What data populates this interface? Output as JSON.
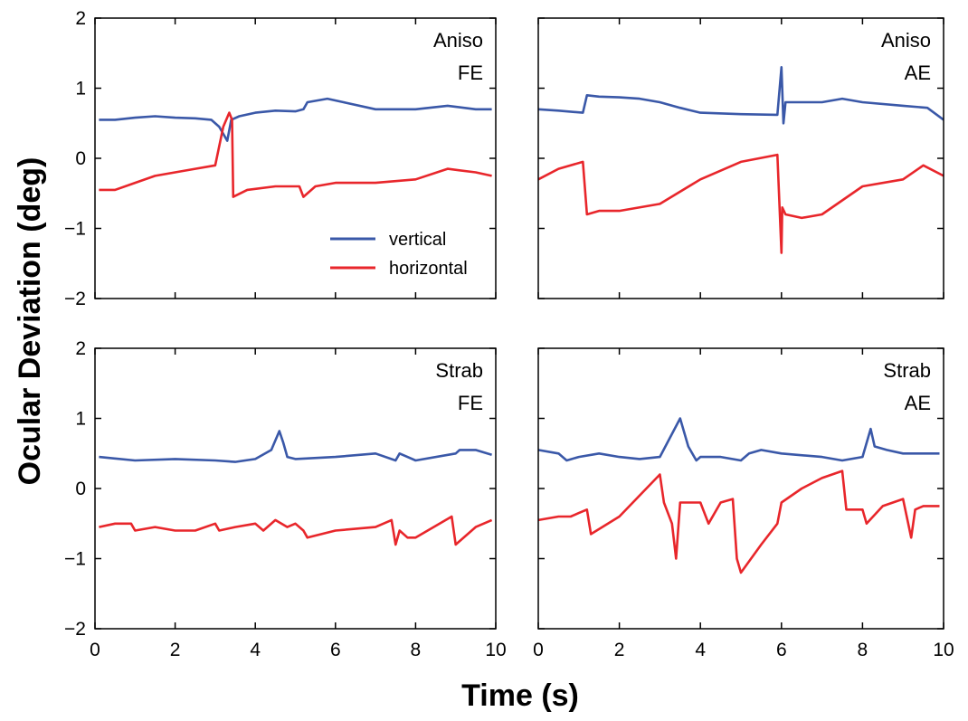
{
  "figure": {
    "ylabel": "Ocular Deviation (deg)",
    "xlabel": "Time (s)"
  },
  "legend": [
    {
      "label": "vertical",
      "color": "#3a58a8"
    },
    {
      "label": "horizontal",
      "color": "#e8262b"
    }
  ],
  "chart_data": [
    {
      "type": "line",
      "label": [
        "Aniso",
        "FE"
      ],
      "xlim": [
        0,
        10
      ],
      "ylim": [
        -2,
        2
      ],
      "xticks": [
        0,
        2,
        4,
        6,
        8,
        10
      ],
      "yticks": [
        -2,
        -1,
        0,
        1,
        2
      ],
      "series": [
        {
          "name": "vertical",
          "color": "#3a58a8",
          "x": [
            0.1,
            0.5,
            1,
            1.5,
            2,
            2.5,
            2.9,
            3.1,
            3.3,
            3.4,
            3.6,
            4,
            4.5,
            5,
            5.2,
            5.3,
            5.8,
            6.2,
            7,
            8,
            8.8,
            9.5,
            9.9
          ],
          "y": [
            0.55,
            0.55,
            0.58,
            0.6,
            0.58,
            0.57,
            0.55,
            0.45,
            0.25,
            0.55,
            0.6,
            0.65,
            0.68,
            0.67,
            0.7,
            0.8,
            0.85,
            0.8,
            0.7,
            0.7,
            0.75,
            0.7,
            0.7
          ]
        },
        {
          "name": "horizontal",
          "color": "#e8262b",
          "x": [
            0.1,
            0.5,
            1,
            1.5,
            2,
            2.5,
            3.0,
            3.2,
            3.35,
            3.42,
            3.45,
            3.8,
            4.5,
            5.1,
            5.2,
            5.5,
            6,
            7,
            8,
            8.8,
            9.5,
            9.9
          ],
          "y": [
            -0.45,
            -0.45,
            -0.35,
            -0.25,
            -0.2,
            -0.15,
            -0.1,
            0.45,
            0.65,
            0.55,
            -0.55,
            -0.45,
            -0.4,
            -0.4,
            -0.55,
            -0.4,
            -0.35,
            -0.35,
            -0.3,
            -0.15,
            -0.2,
            -0.25
          ]
        }
      ]
    },
    {
      "type": "line",
      "label": [
        "Aniso",
        "AE"
      ],
      "xlim": [
        0,
        10
      ],
      "ylim": [
        -2,
        2
      ],
      "xticks": [
        0,
        2,
        4,
        6,
        8,
        10
      ],
      "yticks": [
        -2,
        -1,
        0,
        1,
        2
      ],
      "series": [
        {
          "name": "vertical",
          "color": "#3a58a8",
          "x": [
            0,
            0.5,
            1.1,
            1.2,
            1.5,
            2,
            2.5,
            3,
            3.5,
            4,
            5,
            5.9,
            6.0,
            6.05,
            6.1,
            6.2,
            6.5,
            7,
            7.5,
            8,
            9,
            9.6,
            10
          ],
          "y": [
            0.7,
            0.68,
            0.65,
            0.9,
            0.88,
            0.87,
            0.85,
            0.8,
            0.72,
            0.65,
            0.63,
            0.62,
            1.3,
            0.5,
            0.8,
            0.8,
            0.8,
            0.8,
            0.85,
            0.8,
            0.75,
            0.72,
            0.55
          ]
        },
        {
          "name": "horizontal",
          "color": "#e8262b",
          "x": [
            0,
            0.5,
            1.1,
            1.2,
            1.5,
            2,
            3,
            4,
            5,
            5.9,
            6.0,
            6.02,
            6.1,
            6.5,
            7,
            8,
            9,
            9.5,
            10
          ],
          "y": [
            -0.3,
            -0.15,
            -0.05,
            -0.8,
            -0.75,
            -0.75,
            -0.65,
            -0.3,
            -0.05,
            0.05,
            -1.35,
            -0.7,
            -0.8,
            -0.85,
            -0.8,
            -0.4,
            -0.3,
            -0.1,
            -0.25
          ]
        }
      ]
    },
    {
      "type": "line",
      "label": [
        "Strab",
        "FE"
      ],
      "xlim": [
        0,
        10
      ],
      "ylim": [
        -2,
        2
      ],
      "xticks": [
        0,
        2,
        4,
        6,
        8,
        10
      ],
      "yticks": [
        -2,
        -1,
        0,
        1,
        2
      ],
      "series": [
        {
          "name": "vertical",
          "color": "#3a58a8",
          "x": [
            0.1,
            1,
            2,
            3,
            3.5,
            4,
            4.4,
            4.6,
            4.7,
            4.8,
            5,
            6,
            7,
            7.5,
            7.6,
            8,
            9,
            9.1,
            9.5,
            9.9
          ],
          "y": [
            0.45,
            0.4,
            0.42,
            0.4,
            0.38,
            0.42,
            0.55,
            0.82,
            0.65,
            0.45,
            0.42,
            0.45,
            0.5,
            0.4,
            0.5,
            0.4,
            0.5,
            0.55,
            0.55,
            0.48
          ]
        },
        {
          "name": "horizontal",
          "color": "#e8262b",
          "x": [
            0.1,
            0.5,
            0.9,
            1,
            1.5,
            2,
            2.5,
            3,
            3.1,
            3.5,
            4,
            4.2,
            4.5,
            4.8,
            5,
            5.2,
            5.3,
            6,
            7,
            7.4,
            7.5,
            7.6,
            7.8,
            8,
            8.9,
            9.0,
            9.1,
            9.5,
            9.9
          ],
          "y": [
            -0.55,
            -0.5,
            -0.5,
            -0.6,
            -0.55,
            -0.6,
            -0.6,
            -0.5,
            -0.6,
            -0.55,
            -0.5,
            -0.6,
            -0.45,
            -0.55,
            -0.5,
            -0.6,
            -0.7,
            -0.6,
            -0.55,
            -0.45,
            -0.8,
            -0.6,
            -0.7,
            -0.7,
            -0.4,
            -0.8,
            -0.75,
            -0.55,
            -0.45
          ]
        }
      ]
    },
    {
      "type": "line",
      "label": [
        "Strab",
        "AE"
      ],
      "xlim": [
        0,
        10
      ],
      "ylim": [
        -2,
        2
      ],
      "xticks": [
        0,
        2,
        4,
        6,
        8,
        10
      ],
      "yticks": [
        -2,
        -1,
        0,
        1,
        2
      ],
      "series": [
        {
          "name": "vertical",
          "color": "#3a58a8",
          "x": [
            0,
            0.5,
            0.7,
            1,
            1.5,
            2,
            2.5,
            3,
            3.5,
            3.7,
            3.9,
            4,
            4.5,
            5,
            5.2,
            5.5,
            6,
            7,
            7.5,
            8,
            8.2,
            8.3,
            8.6,
            9,
            9.9
          ],
          "y": [
            0.55,
            0.5,
            0.4,
            0.45,
            0.5,
            0.45,
            0.42,
            0.45,
            1.0,
            0.6,
            0.4,
            0.45,
            0.45,
            0.4,
            0.5,
            0.55,
            0.5,
            0.45,
            0.4,
            0.45,
            0.85,
            0.6,
            0.55,
            0.5,
            0.5
          ]
        },
        {
          "name": "horizontal",
          "color": "#e8262b",
          "x": [
            0,
            0.5,
            0.8,
            1,
            1.2,
            1.3,
            2,
            3,
            3.1,
            3.3,
            3.4,
            3.5,
            3.6,
            4,
            4.2,
            4.5,
            4.8,
            4.9,
            5,
            5.5,
            5.9,
            6,
            6.5,
            7,
            7.5,
            7.6,
            8,
            8.1,
            8.5,
            9,
            9.2,
            9.3,
            9.5,
            9.9
          ],
          "y": [
            -0.45,
            -0.4,
            -0.4,
            -0.35,
            -0.3,
            -0.65,
            -0.4,
            0.2,
            -0.2,
            -0.5,
            -1.0,
            -0.2,
            -0.2,
            -0.2,
            -0.5,
            -0.2,
            -0.15,
            -1.0,
            -1.2,
            -0.8,
            -0.5,
            -0.2,
            0.0,
            0.15,
            0.25,
            -0.3,
            -0.3,
            -0.5,
            -0.25,
            -0.15,
            -0.7,
            -0.3,
            -0.25,
            -0.25
          ]
        }
      ]
    }
  ]
}
